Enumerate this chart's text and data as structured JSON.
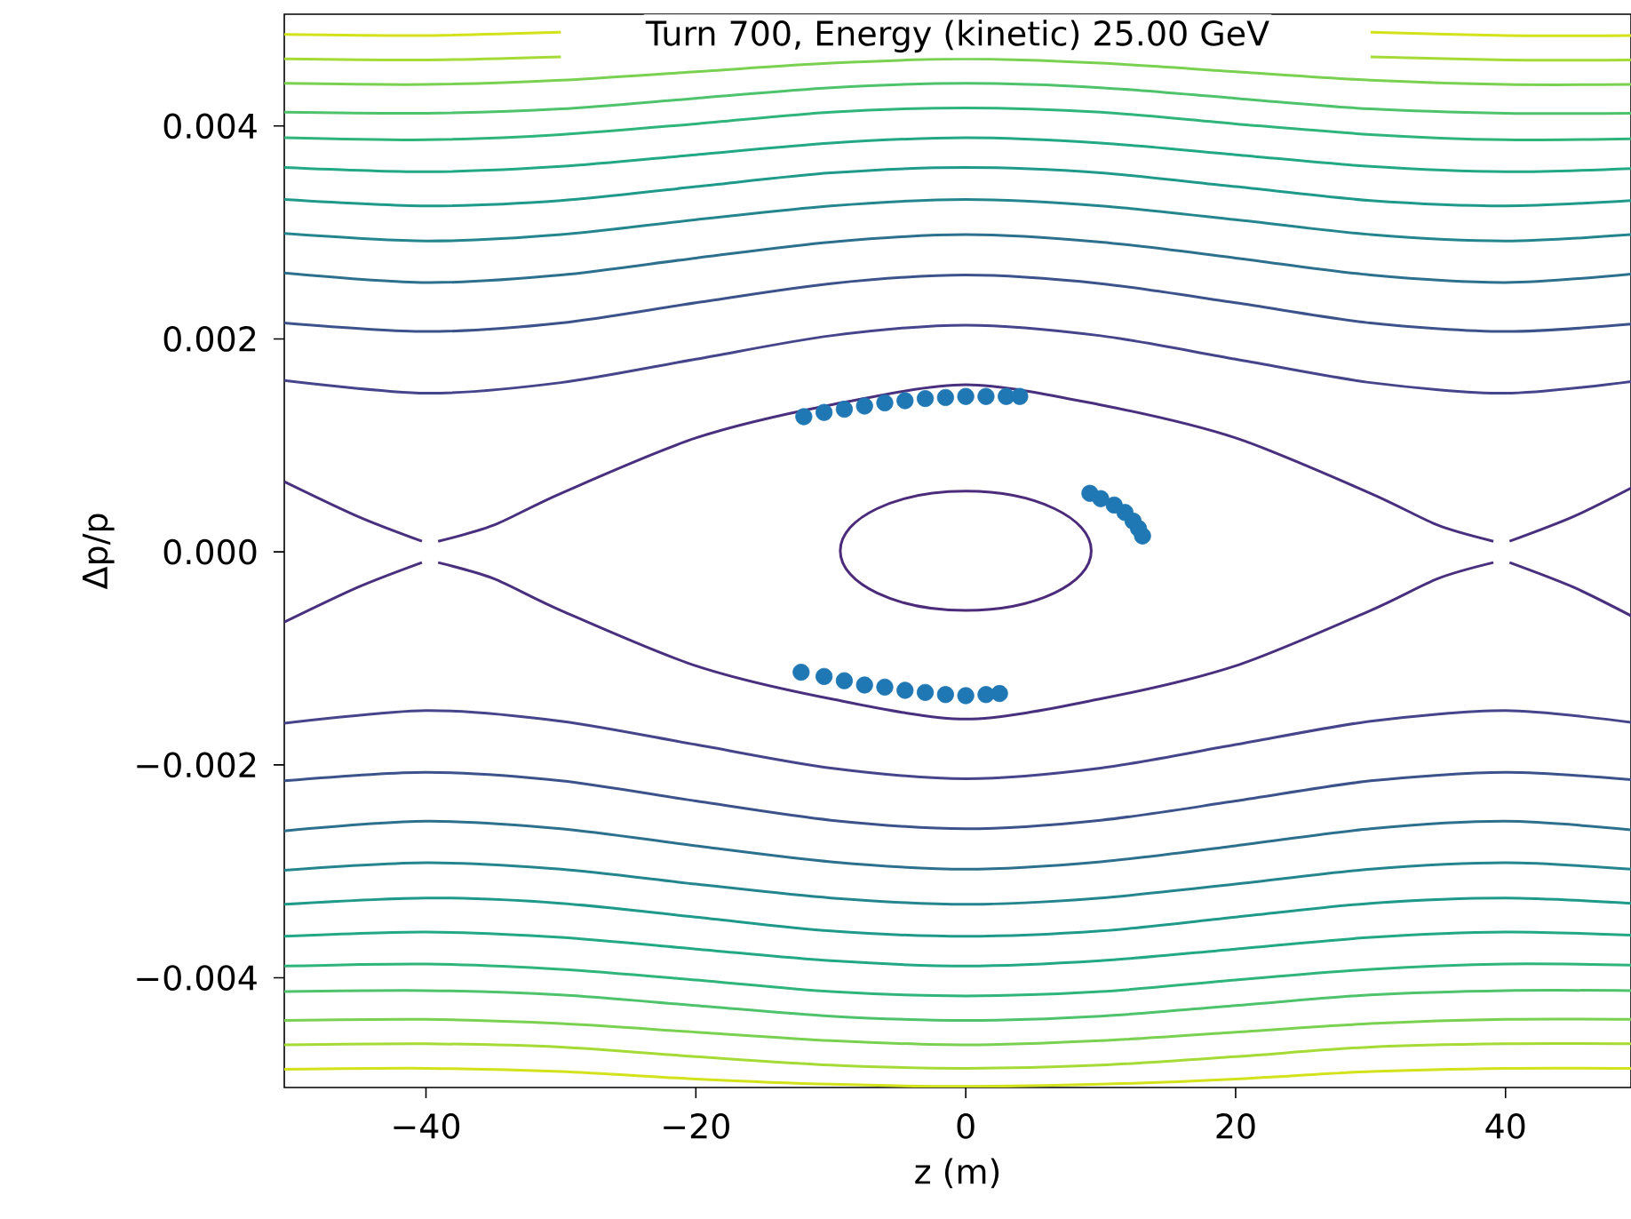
{
  "chart_data": {
    "type": "line",
    "title": "Turn 700, Energy (kinetic) 25.00 GeV",
    "xlabel": "z (m)",
    "ylabel": "Δp/p",
    "xlim": [
      -50.5,
      49.3
    ],
    "ylim": [
      -0.00503,
      0.00505
    ],
    "xticks": [
      {
        "value": -40,
        "label": "−40"
      },
      {
        "value": -20,
        "label": "−20"
      },
      {
        "value": 0,
        "label": "0"
      },
      {
        "value": 20,
        "label": "20"
      },
      {
        "value": 40,
        "label": "40"
      }
    ],
    "yticks": [
      {
        "value": -0.004,
        "label": "−0.004"
      },
      {
        "value": -0.002,
        "label": "−0.002"
      },
      {
        "value": 0,
        "label": "0.000"
      },
      {
        "value": 0.002,
        "label": "0.002"
      },
      {
        "value": 0.004,
        "label": "0.004"
      }
    ],
    "marker": "none",
    "line_style": "solid",
    "x": [
      -50.5,
      -40,
      -30,
      -20,
      -10,
      0,
      10,
      20,
      30,
      40,
      49.3
    ],
    "series": [
      {
        "color": "#46448a",
        "values": [
          0.00161,
          0.00149,
          0.00159,
          0.00181,
          0.00203,
          0.00213,
          0.00203,
          0.00181,
          0.00159,
          0.00149,
          0.0016
        ]
      },
      {
        "color": "#3b528b",
        "values": [
          0.00215,
          0.00207,
          0.00215,
          0.00234,
          0.00252,
          0.0026,
          0.00252,
          0.00234,
          0.00215,
          0.00207,
          0.00214
        ]
      },
      {
        "color": "#2d708e",
        "values": [
          0.00262,
          0.00253,
          0.0026,
          0.00276,
          0.00291,
          0.00298,
          0.00291,
          0.00276,
          0.0026,
          0.00253,
          0.00261
        ]
      },
      {
        "color": "#25858e",
        "values": [
          0.00299,
          0.00292,
          0.00298,
          0.00312,
          0.00325,
          0.00331,
          0.00325,
          0.00312,
          0.00298,
          0.00292,
          0.00298
        ]
      },
      {
        "color": "#1f9a8a",
        "values": [
          0.00331,
          0.00325,
          0.0033,
          0.00343,
          0.00356,
          0.00361,
          0.00356,
          0.00343,
          0.0033,
          0.00325,
          0.0033
        ]
      },
      {
        "color": "#22a884",
        "values": [
          0.00361,
          0.00357,
          0.00362,
          0.00373,
          0.00384,
          0.00389,
          0.00384,
          0.00373,
          0.00362,
          0.00357,
          0.0036
        ]
      },
      {
        "color": "#2fb47c",
        "values": [
          0.00389,
          0.00387,
          0.00392,
          0.00402,
          0.00413,
          0.00417,
          0.00413,
          0.00402,
          0.00392,
          0.00387,
          0.00388
        ]
      },
      {
        "color": "#4ec36b",
        "values": [
          0.00413,
          0.00412,
          0.00416,
          0.00426,
          0.00436,
          0.0044,
          0.00436,
          0.00426,
          0.00416,
          0.00412,
          0.00412
        ]
      },
      {
        "color": "#7ad151",
        "values": [
          0.0044,
          0.00439,
          0.00443,
          0.00451,
          0.00459,
          0.00463,
          0.00459,
          0.00451,
          0.00443,
          0.00439,
          0.00439
        ]
      },
      {
        "color": "#a5db36",
        "values": [
          0.00463,
          0.00462,
          0.00465,
          null,
          null,
          null,
          null,
          null,
          0.00465,
          0.00462,
          0.00462
        ]
      },
      {
        "color": "#d2e21b",
        "values": [
          0.00486,
          0.00485,
          0.00488,
          null,
          null,
          null,
          null,
          null,
          0.00488,
          0.00485,
          0.00485
        ]
      },
      {
        "color": "#46448a",
        "values": [
          -0.00161,
          -0.00149,
          -0.00159,
          -0.00181,
          -0.00203,
          -0.00213,
          -0.00203,
          -0.00181,
          -0.00159,
          -0.00149,
          -0.0016
        ]
      },
      {
        "color": "#3b528b",
        "values": [
          -0.00215,
          -0.00207,
          -0.00215,
          -0.00234,
          -0.00252,
          -0.0026,
          -0.00252,
          -0.00234,
          -0.00215,
          -0.00207,
          -0.00214
        ]
      },
      {
        "color": "#2d708e",
        "values": [
          -0.00262,
          -0.00253,
          -0.0026,
          -0.00276,
          -0.00291,
          -0.00298,
          -0.00291,
          -0.00276,
          -0.0026,
          -0.00253,
          -0.00261
        ]
      },
      {
        "color": "#25858e",
        "values": [
          -0.00299,
          -0.00292,
          -0.00298,
          -0.00312,
          -0.00325,
          -0.00331,
          -0.00325,
          -0.00312,
          -0.00298,
          -0.00292,
          -0.00298
        ]
      },
      {
        "color": "#1f9a8a",
        "values": [
          -0.00331,
          -0.00325,
          -0.0033,
          -0.00343,
          -0.00356,
          -0.00361,
          -0.00356,
          -0.00343,
          -0.0033,
          -0.00325,
          -0.0033
        ]
      },
      {
        "color": "#22a884",
        "values": [
          -0.00361,
          -0.00357,
          -0.00362,
          -0.00373,
          -0.00384,
          -0.00389,
          -0.00384,
          -0.00373,
          -0.00362,
          -0.00357,
          -0.0036
        ]
      },
      {
        "color": "#2fb47c",
        "values": [
          -0.00389,
          -0.00387,
          -0.00392,
          -0.00402,
          -0.00413,
          -0.00417,
          -0.00413,
          -0.00402,
          -0.00392,
          -0.00387,
          -0.00388
        ]
      },
      {
        "color": "#4ec36b",
        "values": [
          -0.00413,
          -0.00412,
          -0.00416,
          -0.00426,
          -0.00436,
          -0.0044,
          -0.00436,
          -0.00426,
          -0.00416,
          -0.00412,
          -0.00412
        ]
      },
      {
        "color": "#7ad151",
        "values": [
          -0.0044,
          -0.00439,
          -0.00443,
          -0.00451,
          -0.00459,
          -0.00463,
          -0.00459,
          -0.00451,
          -0.00443,
          -0.00439,
          -0.00439
        ]
      },
      {
        "color": "#a5db36",
        "values": [
          -0.00463,
          -0.00462,
          -0.00465,
          -0.00474,
          -0.00482,
          -0.00485,
          -0.00482,
          -0.00474,
          -0.00465,
          -0.00462,
          -0.00462
        ]
      },
      {
        "color": "#d2e21b",
        "values": [
          -0.00486,
          -0.00485,
          -0.00488,
          -0.00495,
          -0.005,
          -0.00502,
          -0.005,
          -0.00495,
          -0.00488,
          -0.00485,
          -0.00485
        ]
      },
      {
        "color": "#48307e",
        "x": [
          -50.5,
          -45,
          -40.3,
          -39.7,
          -39.1,
          -35,
          -30,
          -20,
          -10,
          0,
          10,
          20,
          30,
          35,
          39.1,
          39.7,
          40.3,
          45,
          49.3
        ],
        "values": [
          0.00066,
          0.00033,
          0.0001,
          null,
          0.0001,
          0.00025,
          0.00055,
          0.00107,
          0.00138,
          0.00157,
          0.00138,
          0.00107,
          0.00055,
          0.00025,
          0.0001,
          null,
          0.0001,
          0.00033,
          0.0006
        ]
      },
      {
        "color": "#48307e",
        "x": [
          -50.5,
          -45,
          -40.3,
          -39.7,
          -39.1,
          -35,
          -30,
          -20,
          -10,
          0,
          10,
          20,
          30,
          35,
          39.1,
          39.7,
          40.3,
          45,
          49.3
        ],
        "values": [
          -0.00066,
          -0.00033,
          -0.0001,
          null,
          -0.0001,
          -0.00025,
          -0.00055,
          -0.00107,
          -0.00138,
          -0.00157,
          -0.00138,
          -0.00107,
          -0.00055,
          -0.00025,
          -0.0001,
          null,
          -0.0001,
          -0.00033,
          -0.0006
        ]
      },
      {
        "type": "scatter",
        "marker": "circle",
        "color": "#1f77b4",
        "x": [
          -12,
          -10.5,
          -9,
          -7.5,
          -6,
          -4.5,
          -3,
          -1.5,
          0,
          1.5,
          3,
          4,
          9.2,
          10,
          11,
          11.8,
          12.4,
          12.8,
          13.1,
          -12.2,
          -10.5,
          -9,
          -7.5,
          -6,
          -4.5,
          -3,
          -1.5,
          0,
          1.5,
          2.5
        ],
        "values": [
          0.00127,
          0.00131,
          0.00134,
          0.00137,
          0.0014,
          0.00142,
          0.00144,
          0.00145,
          0.00146,
          0.00146,
          0.00146,
          0.00146,
          0.00055,
          0.0005,
          0.00044,
          0.00037,
          0.00029,
          0.00022,
          0.00015,
          -0.00113,
          -0.00117,
          -0.00121,
          -0.00125,
          -0.00127,
          -0.0013,
          -0.00132,
          -0.00134,
          -0.00135,
          -0.00134,
          -0.00133
        ]
      }
    ]
  }
}
